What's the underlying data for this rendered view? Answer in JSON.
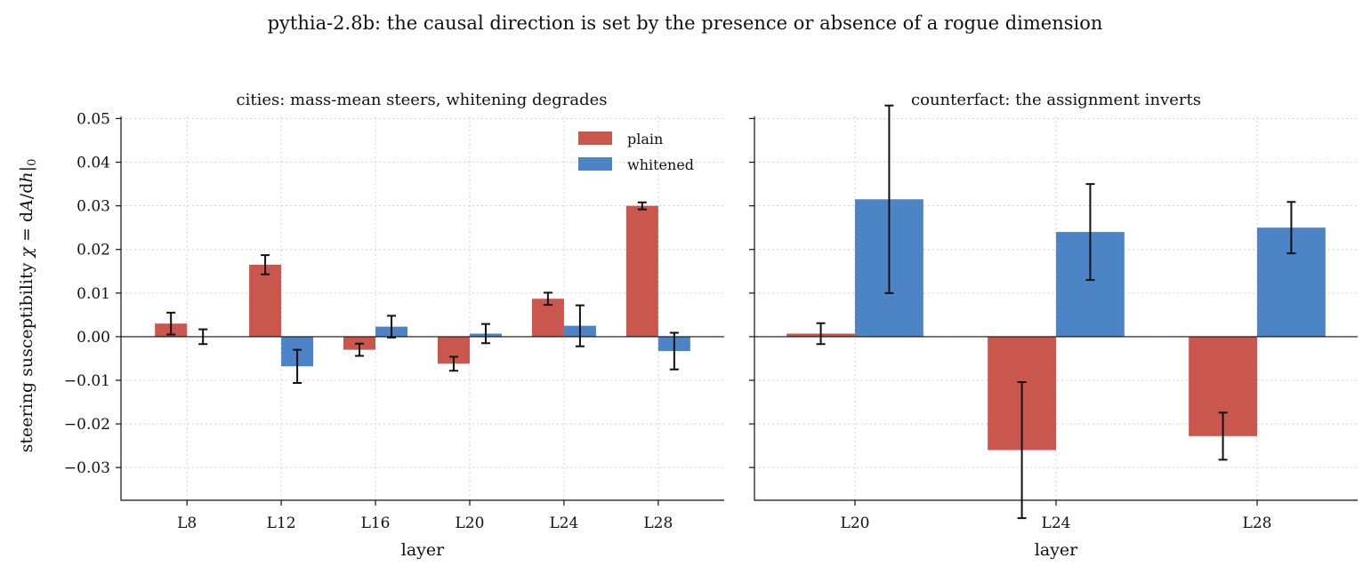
{
  "suptitle": "pythia-2.8b: the causal direction is set by the presence or absence of a rogue dimension",
  "colors": {
    "plain": "#c9574d",
    "whitened": "#4c84c6"
  },
  "chart_data": [
    {
      "type": "bar",
      "title": "cities: mass-mean steers, whitening degrades",
      "xlabel": "layer",
      "ylabel": "steering susceptibility χ = dA/dh|0",
      "ylabel_parts": {
        "main": "steering susceptibility ",
        "chi": "χ",
        "eq": " = d",
        "A": "A",
        "slash": "/d",
        "h": "h",
        "bar": "|",
        "sub": "0"
      },
      "categories": [
        "L8",
        "L12",
        "L16",
        "L20",
        "L24",
        "L28"
      ],
      "ylim": [
        -0.0375,
        0.0505
      ],
      "yticks": [
        -0.03,
        -0.02,
        -0.01,
        0.0,
        0.01,
        0.02,
        0.03,
        0.04,
        0.05
      ],
      "ytick_labels": [
        "−0.03",
        "−0.02",
        "−0.01",
        "0.00",
        "0.01",
        "0.02",
        "0.03",
        "0.04",
        "0.05"
      ],
      "grid": true,
      "legend": "top-right",
      "series": [
        {
          "name": "plain",
          "values": [
            0.003,
            0.0165,
            -0.003,
            -0.0062,
            0.0087,
            0.03
          ],
          "err": [
            0.0025,
            0.0022,
            0.0014,
            0.0016,
            0.0014,
            0.0008
          ]
        },
        {
          "name": "whitened",
          "values": [
            0.0,
            -0.0068,
            0.0023,
            0.0007,
            0.0025,
            -0.0033
          ],
          "err": [
            0.0017,
            0.0038,
            0.0025,
            0.0022,
            0.0047,
            0.0042
          ]
        }
      ]
    },
    {
      "type": "bar",
      "title": "counterfact: the assignment inverts",
      "xlabel": "layer",
      "categories": [
        "L20",
        "L24",
        "L28"
      ],
      "ylim": [
        -0.0375,
        0.0505
      ],
      "yticks": [
        -0.03,
        -0.02,
        -0.01,
        0.0,
        0.01,
        0.02,
        0.03,
        0.04,
        0.05
      ],
      "grid": true,
      "series": [
        {
          "name": "plain",
          "values": [
            0.0007,
            -0.026,
            -0.0228
          ],
          "err": [
            0.0024,
            0.0156,
            0.0054
          ]
        },
        {
          "name": "whitened",
          "values": [
            0.0315,
            0.024,
            0.025
          ],
          "err": [
            0.0215,
            0.011,
            0.0059
          ]
        }
      ]
    }
  ]
}
